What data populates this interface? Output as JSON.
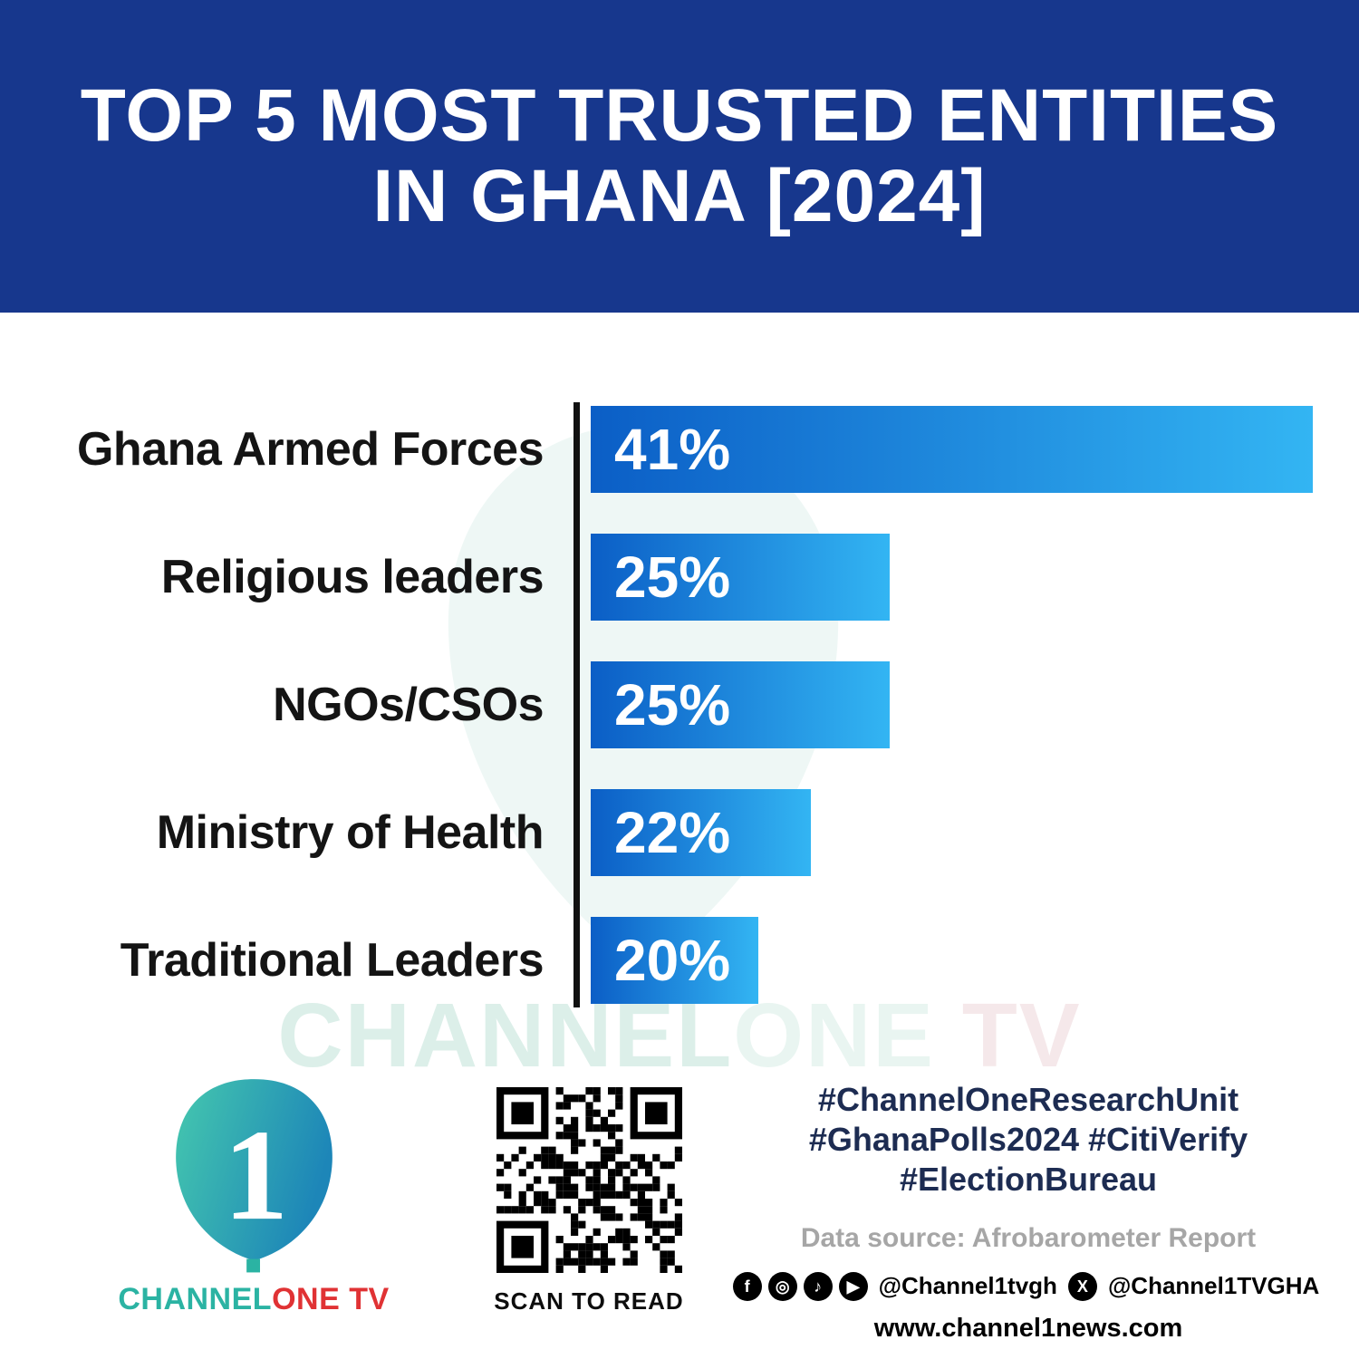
{
  "header": {
    "title_line1": "TOP 5 MOST TRUSTED ENTITIES",
    "title_line2": "IN GHANA [2024]"
  },
  "chart_data": {
    "type": "bar",
    "orientation": "horizontal",
    "title": "TOP 5 MOST TRUSTED ENTITIES IN GHANA [2024]",
    "categories": [
      "Ghana Armed Forces",
      "Religious leaders",
      "NGOs/CSOs",
      "Ministry of Health",
      "Traditional Leaders"
    ],
    "values": [
      41,
      25,
      25,
      22,
      20
    ],
    "value_labels": [
      "41%",
      "25%",
      "25%",
      "22%",
      "20%"
    ],
    "display_widths": [
      797,
      330,
      330,
      243,
      185
    ],
    "xlabel": "",
    "ylabel": "",
    "legend": false,
    "grid": false
  },
  "watermark": {
    "part1": "CHANNEL",
    "part2": "ONE",
    "part3": "TV"
  },
  "footer": {
    "logo": {
      "numeral": "1",
      "word_channel": "CHANNEL",
      "word_one": "ONE",
      "word_tv": "TV"
    },
    "qr_caption": "SCAN TO READ",
    "hashtags": [
      "#ChannelOneResearchUnit",
      "#GhanaPolls2024 #CitiVerify",
      "#ElectionBureau"
    ],
    "data_source": "Data source: Afrobarometer Report",
    "social": {
      "handle_main": "@Channel1tvgh",
      "handle_x": "@Channel1TVGHA"
    },
    "website": "www.channel1news.com"
  },
  "colors": {
    "header_bg": "#17378d",
    "bar_start": "#0b5ec6",
    "bar_end": "#33b5f3",
    "axis": "#111111",
    "label": "#141414",
    "teal": "#2bb3a3",
    "red": "#e03234",
    "hashtag": "#1d2c52",
    "gray": "#a6a6a6"
  }
}
